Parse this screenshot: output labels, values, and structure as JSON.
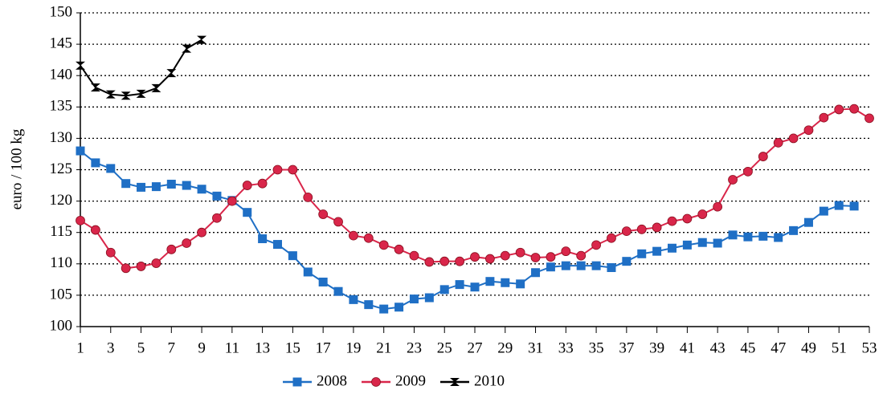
{
  "chart_data": {
    "type": "line",
    "y_label": "euro / 100 kg",
    "x": [
      1,
      2,
      3,
      4,
      5,
      6,
      7,
      8,
      9,
      10,
      11,
      12,
      13,
      14,
      15,
      16,
      17,
      18,
      19,
      20,
      21,
      22,
      23,
      24,
      25,
      26,
      27,
      28,
      29,
      30,
      31,
      32,
      33,
      34,
      35,
      36,
      37,
      38,
      39,
      40,
      41,
      42,
      43,
      44,
      45,
      46,
      47,
      48,
      49,
      50,
      51,
      52,
      53
    ],
    "xlim": [
      1,
      53
    ],
    "xticks": [
      1,
      3,
      5,
      7,
      9,
      11,
      13,
      15,
      17,
      19,
      21,
      23,
      25,
      27,
      29,
      31,
      33,
      35,
      37,
      39,
      41,
      43,
      45,
      47,
      49,
      51,
      53
    ],
    "ylim": [
      100,
      150
    ],
    "yticks": [
      100,
      105,
      110,
      115,
      120,
      125,
      130,
      135,
      140,
      145,
      150
    ],
    "grid": true,
    "legend": "bottom",
    "series": [
      {
        "name": "2008",
        "color": "#1f6fc5",
        "marker": "square",
        "values": [
          128,
          126.1,
          125.2,
          122.8,
          122.2,
          122.3,
          122.7,
          122.5,
          121.9,
          120.8,
          120.1,
          118.2,
          114,
          113.1,
          111.3,
          108.7,
          107.1,
          105.6,
          104.3,
          103.5,
          102.8,
          103.1,
          104.4,
          104.6,
          105.9,
          106.7,
          106.3,
          107.2,
          107,
          106.8,
          108.6,
          109.5,
          109.7,
          109.7,
          109.7,
          109.4,
          110.4,
          111.6,
          112,
          112.5,
          113,
          113.4,
          113.3,
          114.6,
          114.3,
          114.4,
          114.2,
          115.3,
          116.6,
          118.4,
          119.3,
          119.2,
          null
        ]
      },
      {
        "name": "2009",
        "color": "#d9264a",
        "marker": "circle",
        "values": [
          116.9,
          115.4,
          111.8,
          109.3,
          109.6,
          110.1,
          112.3,
          113.3,
          115,
          117.3,
          120,
          122.5,
          122.8,
          125,
          125,
          120.6,
          117.9,
          116.7,
          114.5,
          114.1,
          113,
          112.3,
          111.3,
          110.3,
          110.4,
          110.4,
          111.1,
          110.8,
          111.3,
          111.8,
          111,
          111.1,
          112,
          111.3,
          113,
          114.1,
          115.2,
          115.5,
          115.8,
          116.8,
          117.2,
          117.9,
          119.1,
          123.4,
          124.7,
          127.1,
          129.3,
          130,
          131.3,
          133.3,
          134.6,
          134.7,
          133.2
        ]
      },
      {
        "name": "2010",
        "color": "#000000",
        "marker": "bowtie",
        "values": [
          141.6,
          138.1,
          137,
          136.8,
          137.1,
          138,
          140.4,
          144.3,
          145.7,
          null,
          null,
          null,
          null,
          null,
          null,
          null,
          null,
          null,
          null,
          null,
          null,
          null,
          null,
          null,
          null,
          null,
          null,
          null,
          null,
          null,
          null,
          null,
          null,
          null,
          null,
          null,
          null,
          null,
          null,
          null,
          null,
          null,
          null,
          null,
          null,
          null,
          null,
          null,
          null,
          null,
          null,
          null,
          null
        ]
      }
    ]
  }
}
